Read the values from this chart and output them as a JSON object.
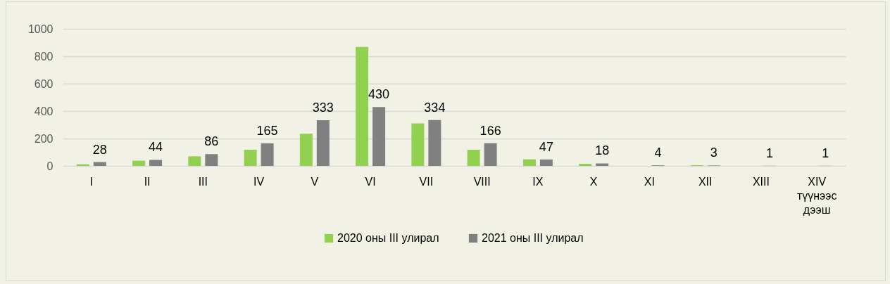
{
  "chart_data": {
    "type": "bar",
    "categories": [
      "I",
      "II",
      "III",
      "IV",
      "V",
      "VI",
      "VII",
      "VIII",
      "IX",
      "X",
      "XI",
      "XII",
      "XIII",
      "XIV түүнээс дээш"
    ],
    "series": [
      {
        "name": "2020 оны III улирал",
        "color": "#92d050",
        "values": [
          12,
          38,
          70,
          118,
          235,
          868,
          310,
          118,
          48,
          15,
          null,
          5,
          0,
          0
        ]
      },
      {
        "name": "2021 оны III улирал",
        "color": "#808080",
        "values": [
          28,
          44,
          86,
          165,
          333,
          430,
          334,
          166,
          47,
          18,
          4,
          3,
          1,
          1
        ],
        "value_labels": [
          "28",
          "44",
          "86",
          "165",
          "333",
          "430",
          "334",
          "166",
          "47",
          "18",
          "4",
          "3",
          "1",
          "1"
        ]
      }
    ],
    "ylim": [
      0,
      1000
    ],
    "yticks": [
      0,
      200,
      400,
      600,
      800,
      1000
    ],
    "grid": "y",
    "legend": "bottom"
  }
}
